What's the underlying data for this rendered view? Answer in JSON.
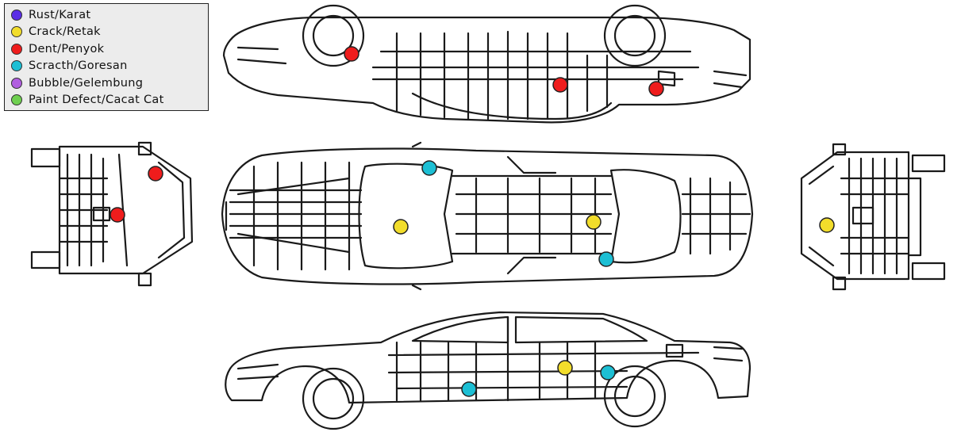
{
  "legend": {
    "items": [
      {
        "label": "Rust/Karat",
        "color": "#5b2ee6",
        "key": "rust"
      },
      {
        "label": "Crack/Retak",
        "color": "#f2dd2b",
        "key": "crack"
      },
      {
        "label": "Dent/Penyok",
        "color": "#ef1c1c",
        "key": "dent"
      },
      {
        "label": "Scracth/Goresan",
        "color": "#1cbfd4",
        "key": "scratch"
      },
      {
        "label": "Bubble/Gelembung",
        "color": "#b15ee0",
        "key": "bubble"
      },
      {
        "label": "Paint Defect/Cacat Cat",
        "color": "#6fd050",
        "key": "paint"
      }
    ]
  },
  "markers": [
    {
      "type": "dent",
      "view": "left-side"
    },
    {
      "type": "dent",
      "view": "left-side"
    },
    {
      "type": "dent",
      "view": "left-side"
    },
    {
      "type": "dent",
      "view": "front"
    },
    {
      "type": "dent",
      "view": "front"
    },
    {
      "type": "scratch",
      "view": "top"
    },
    {
      "type": "crack",
      "view": "top"
    },
    {
      "type": "crack",
      "view": "top"
    },
    {
      "type": "scratch",
      "view": "top"
    },
    {
      "type": "crack",
      "view": "rear"
    },
    {
      "type": "crack",
      "view": "right-side"
    },
    {
      "type": "scratch",
      "view": "right-side"
    },
    {
      "type": "scratch",
      "view": "right-side"
    }
  ]
}
